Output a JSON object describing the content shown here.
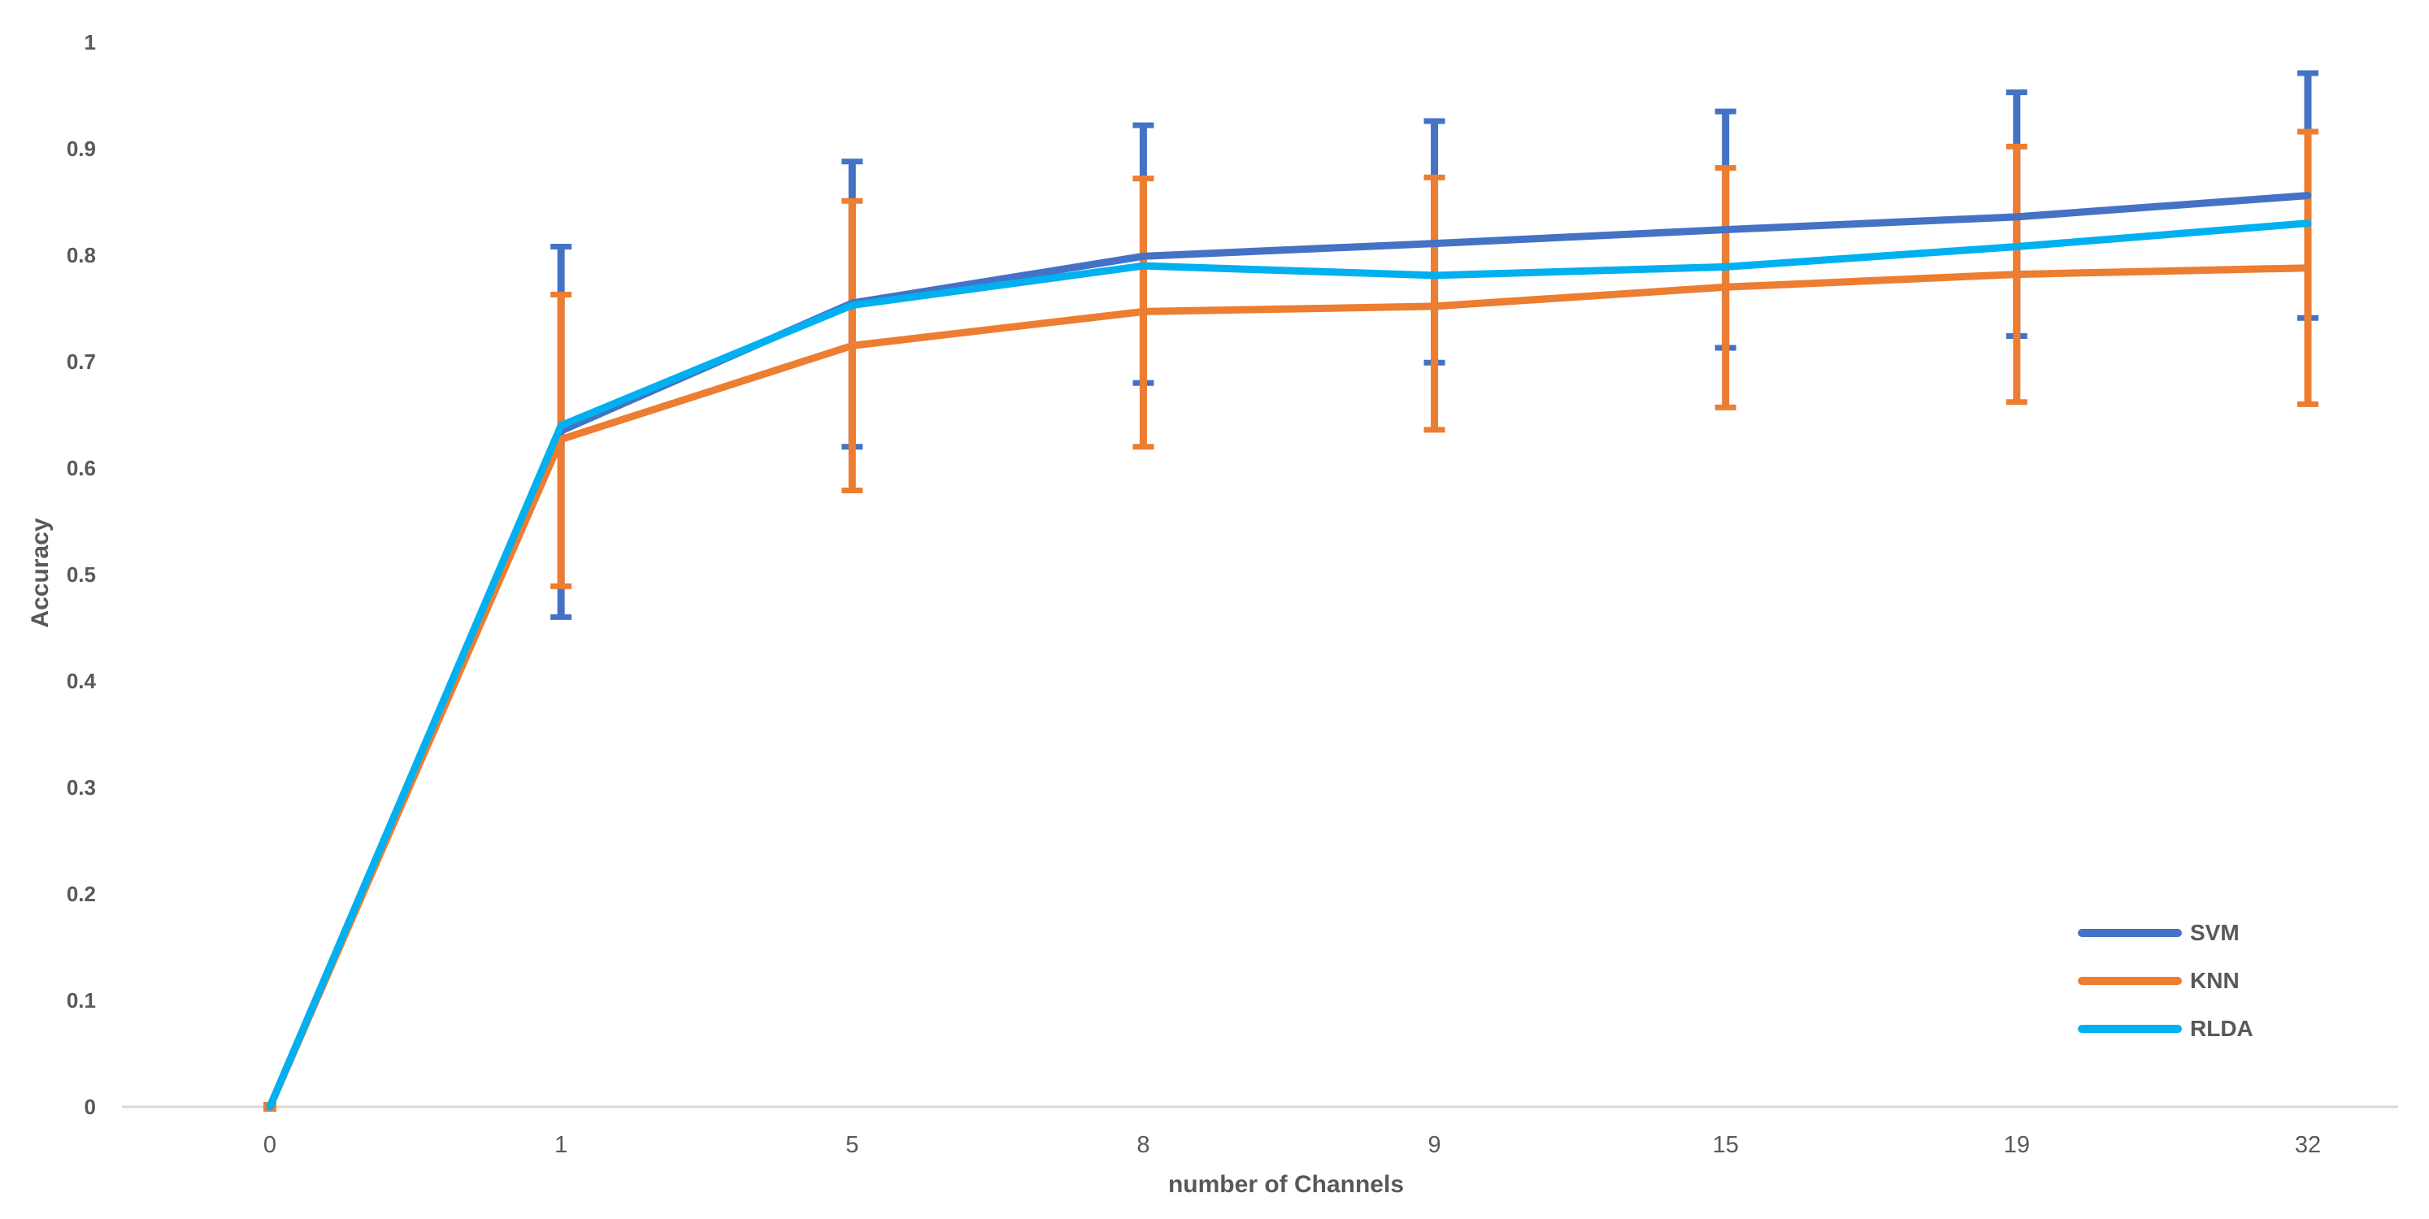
{
  "chart_data": {
    "type": "line",
    "title": "",
    "xlabel": "number of Channels",
    "ylabel": "Accuracy",
    "categories": [
      "0",
      "1",
      "5",
      "8",
      "9",
      "15",
      "19",
      "32"
    ],
    "y_ticks": [
      "0",
      "0.1",
      "0.2",
      "0.3",
      "0.4",
      "0.5",
      "0.6",
      "0.7",
      "0.8",
      "0.9",
      "1"
    ],
    "ylim": [
      0,
      1
    ],
    "grid": false,
    "legend_position": "right-lower-inside",
    "axis_line_color": "#D9D9D9",
    "text_color": "#595959",
    "series": [
      {
        "name": "SVM",
        "color": "#4472C4",
        "values": [
          0,
          0.635,
          0.755,
          0.799,
          0.811,
          0.824,
          0.836,
          0.856
        ],
        "error_low": [
          null,
          0.46,
          0.62,
          0.68,
          0.699,
          0.713,
          0.724,
          0.741
        ],
        "error_high": [
          null,
          0.808,
          0.888,
          0.922,
          0.926,
          0.935,
          0.953,
          0.971
        ]
      },
      {
        "name": "KNN",
        "color": "#ED7D31",
        "values": [
          0,
          0.627,
          0.715,
          0.747,
          0.752,
          0.77,
          0.782,
          0.788
        ],
        "error_low": [
          null,
          0.489,
          0.579,
          0.62,
          0.636,
          0.657,
          0.662,
          0.66
        ],
        "error_high": [
          null,
          0.763,
          0.851,
          0.872,
          0.873,
          0.882,
          0.902,
          0.916
        ]
      },
      {
        "name": "RLDA",
        "color": "#00B0F0",
        "values": [
          0,
          0.64,
          0.753,
          0.79,
          0.781,
          0.789,
          0.808,
          0.83
        ],
        "error_low": null,
        "error_high": null
      }
    ],
    "origin_marker": {
      "category_index": 0,
      "value": 0,
      "color": "#ED7D31"
    }
  }
}
